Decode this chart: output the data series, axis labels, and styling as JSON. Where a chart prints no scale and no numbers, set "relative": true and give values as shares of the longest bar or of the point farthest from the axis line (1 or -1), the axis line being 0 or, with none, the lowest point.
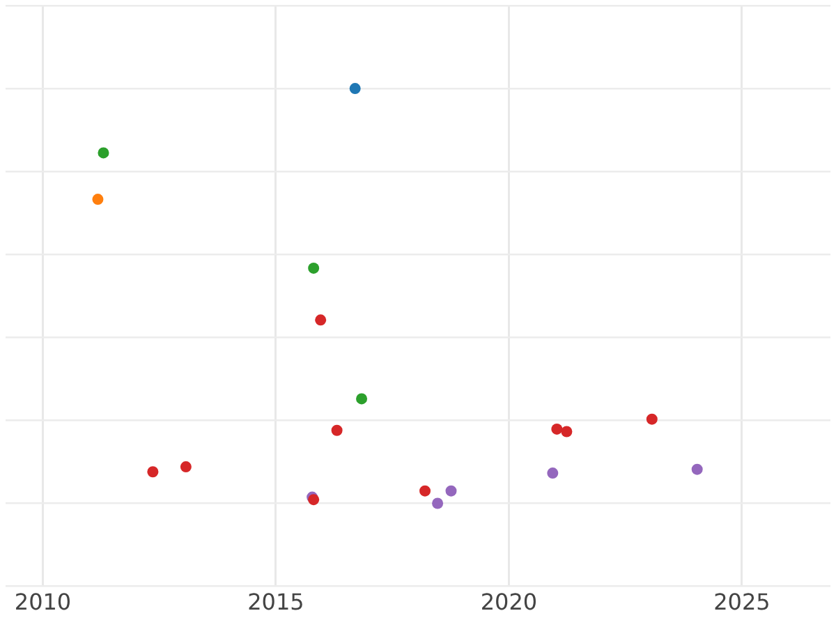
{
  "chart_data": {
    "type": "scatter",
    "relative": true,
    "xlim": [
      2009.2,
      2026.9
    ],
    "xticks": [
      2010,
      2015,
      2020,
      2025
    ],
    "grid": true,
    "legend": false,
    "marker": "circle",
    "series": [
      {
        "color": "#1f77b4",
        "x": [
          2016.7
        ],
        "values": [
          1.0
        ]
      },
      {
        "color": "#ff7f0e",
        "x": [
          2011.18
        ],
        "values": [
          0.733
        ]
      },
      {
        "color": "#2ca02c",
        "x": [
          2011.3,
          2015.81,
          2016.84
        ],
        "values": [
          0.845,
          0.567,
          0.252
        ]
      },
      {
        "color": "#d62728",
        "x": [
          2015.96,
          2016.31,
          2012.36,
          2013.07,
          2015.81,
          2018.2,
          2021.03,
          2021.24,
          2023.07
        ],
        "values": [
          0.442,
          0.176,
          0.076,
          0.088,
          0.009,
          0.03,
          0.179,
          0.173,
          0.203
        ]
      },
      {
        "color": "#9467bd",
        "x": [
          2015.78,
          2018.47,
          2018.76,
          2020.94,
          2024.04
        ],
        "values": [
          0.015,
          0,
          0.03,
          0.073,
          0.082
        ]
      }
    ]
  }
}
